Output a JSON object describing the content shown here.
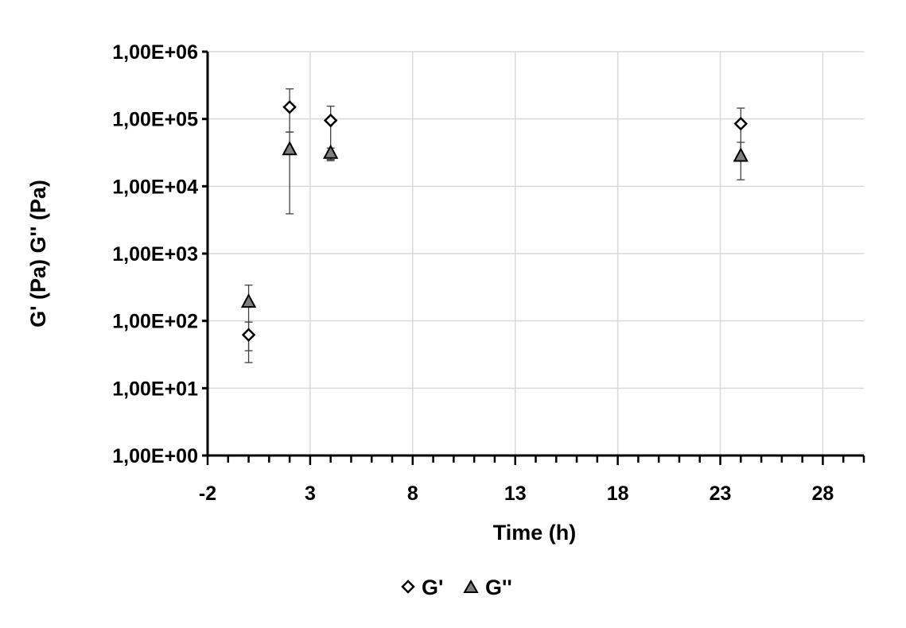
{
  "chart_data": {
    "type": "scatter",
    "title": "",
    "xlabel": "Time (h)",
    "ylabel": "G' (Pa) G'' (Pa)",
    "x_scale": "linear",
    "y_scale": "log",
    "xlim": [
      -2,
      30
    ],
    "ylim": [
      1,
      1000000
    ],
    "x_ticks": [
      -2,
      3,
      8,
      13,
      18,
      23,
      28
    ],
    "x_tick_labels": [
      "-2",
      "3",
      "8",
      "13",
      "18",
      "23",
      "28"
    ],
    "y_ticks": [
      1,
      10,
      100,
      1000,
      10000,
      100000,
      1000000
    ],
    "y_tick_labels": [
      "1,00E+00",
      "1,00E+01",
      "1,00E+02",
      "1,00E+03",
      "1,00E+04",
      "1,00E+05",
      "1,00E+06"
    ],
    "grid": true,
    "legend_position": "bottom",
    "series": [
      {
        "name": "G'",
        "marker": "diamond-open",
        "color": "#000000",
        "x": [
          0,
          2,
          4,
          24
        ],
        "y": [
          62,
          150000,
          95000,
          85000
        ],
        "error_low": [
          36,
          64000,
          24000,
          29000
        ],
        "error_high": [
          96,
          280000,
          155000,
          145000
        ]
      },
      {
        "name": "G''",
        "marker": "triangle-filled",
        "color": "#7f7f7f",
        "x": [
          0,
          2,
          4,
          24
        ],
        "y": [
          190,
          35000,
          31000,
          28000
        ],
        "error_low": [
          24,
          3900,
          25000,
          12500
        ],
        "error_high": [
          340,
          64000,
          37000,
          45000
        ]
      }
    ]
  }
}
